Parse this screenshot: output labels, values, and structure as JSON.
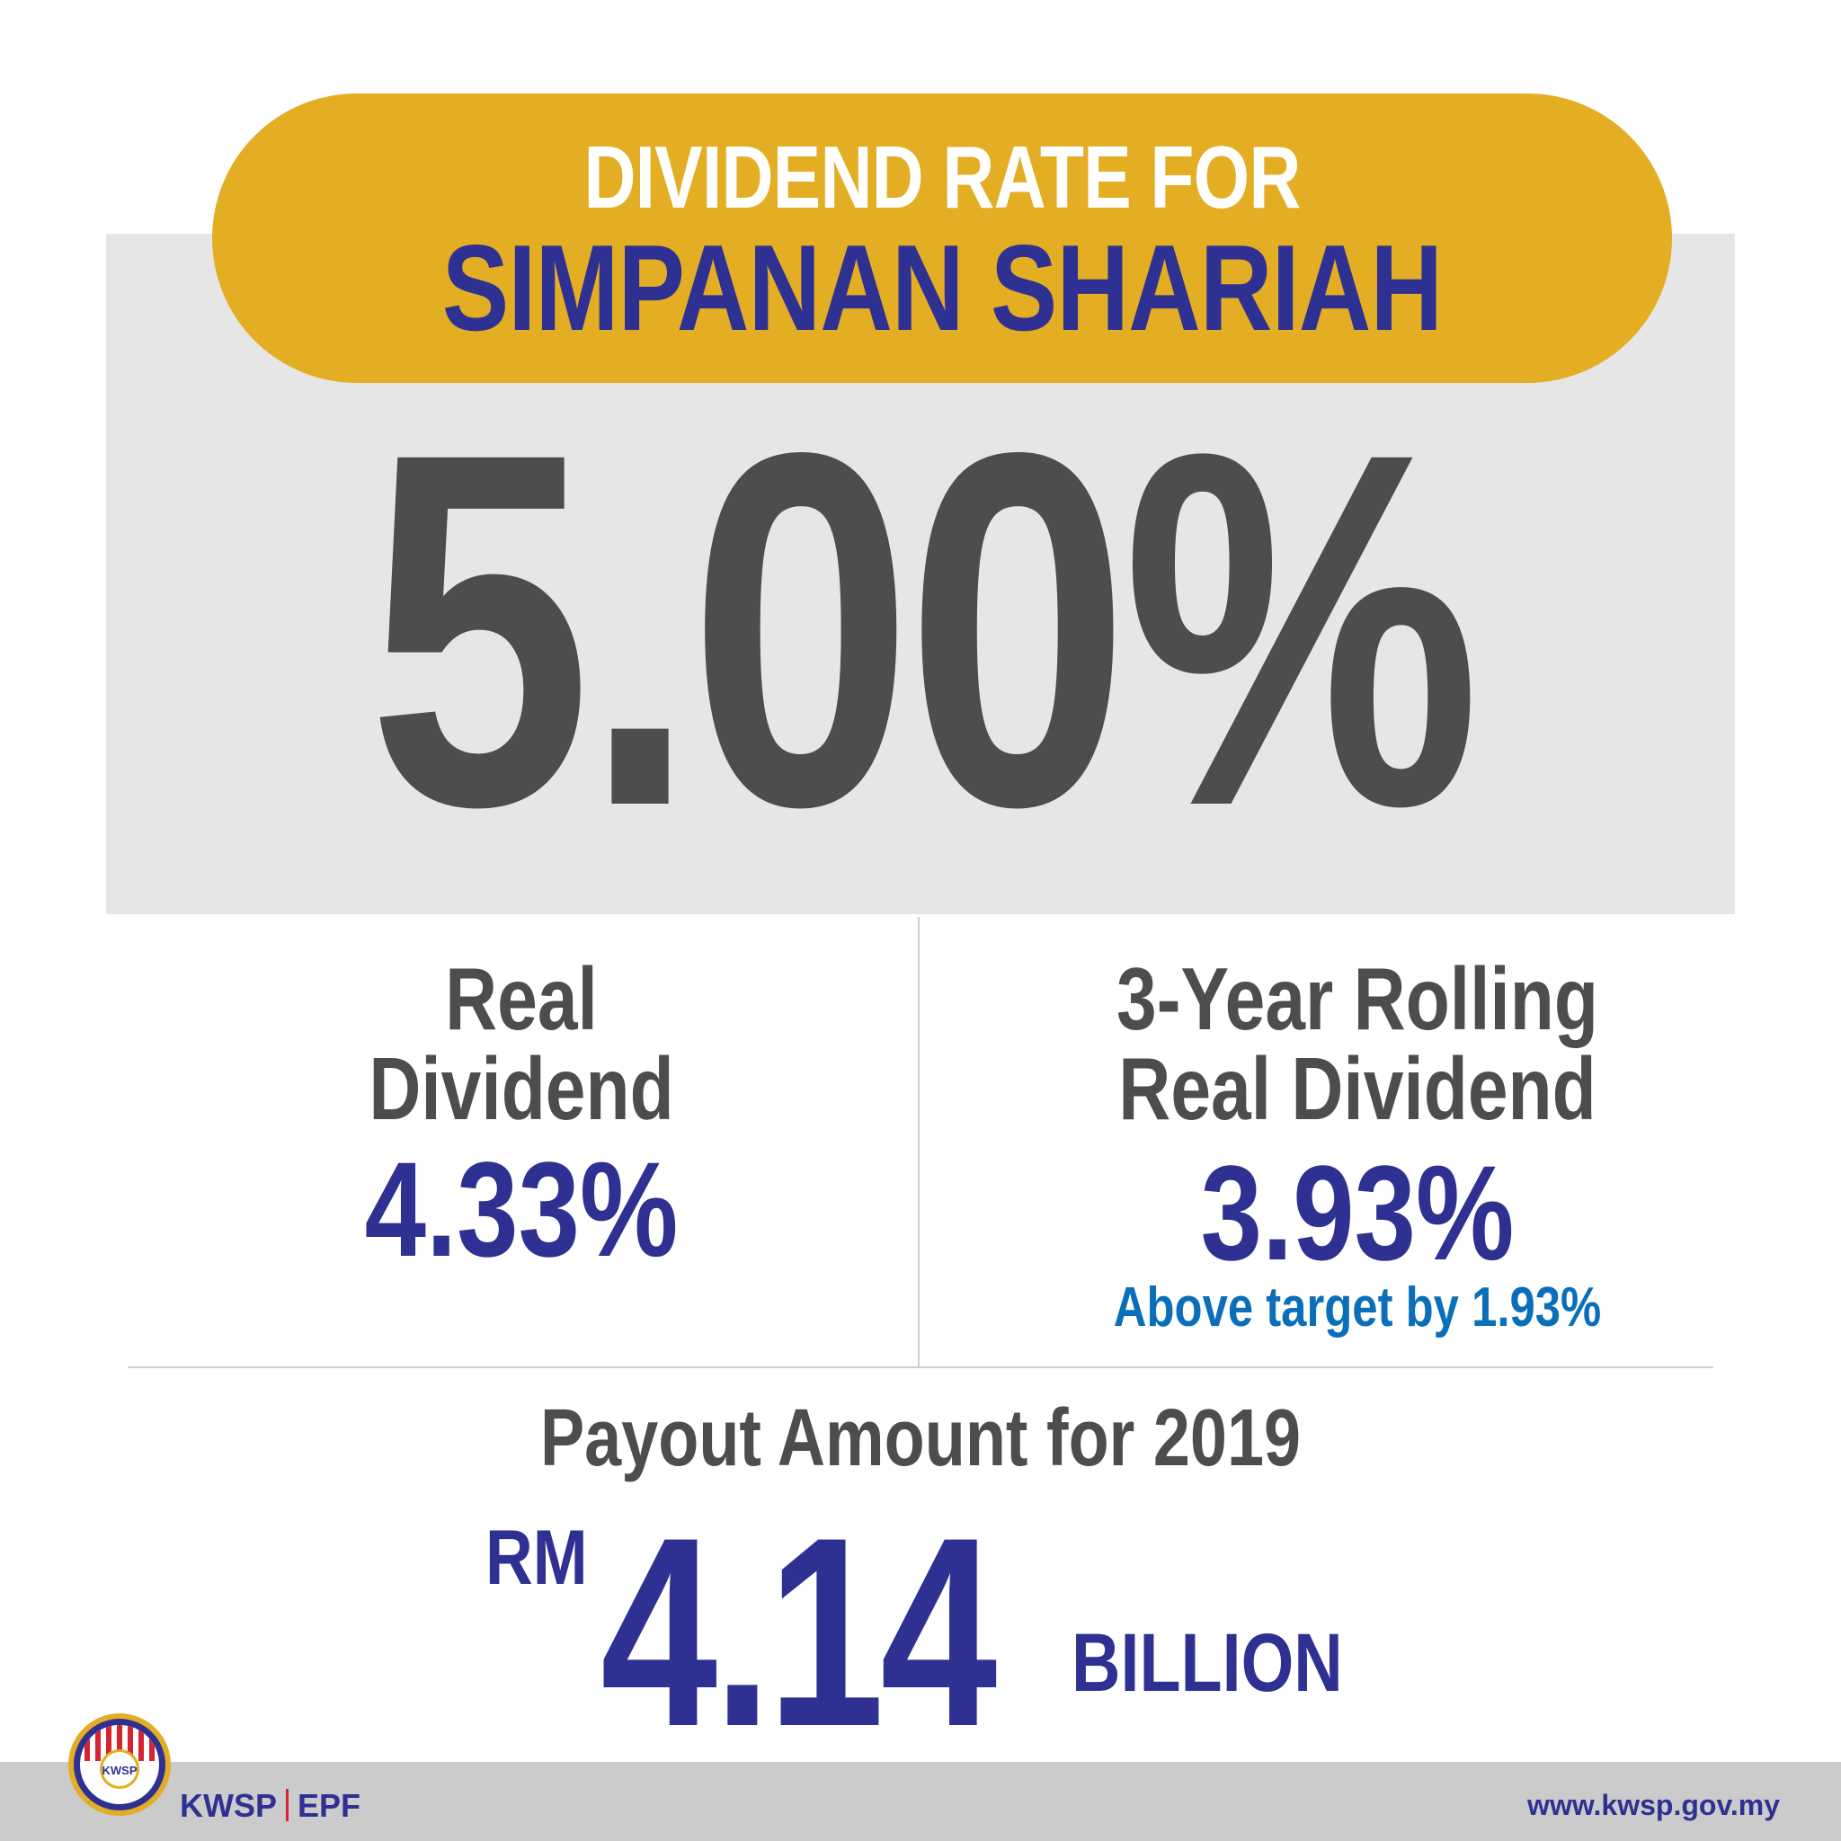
{
  "header": {
    "line1": "DIVIDEND RATE FOR",
    "line2": "SIMPANAN SHARIAH"
  },
  "main_rate": "5.00%",
  "real_dividend": {
    "label_line1": "Real",
    "label_line2": "Dividend",
    "value": "4.33%"
  },
  "rolling_dividend": {
    "label_line1": "3-Year Rolling",
    "label_line2": "Real Dividend",
    "value": "3.93%",
    "note": "Above target by 1.93%"
  },
  "payout": {
    "label": "Payout Amount for 2019",
    "currency": "RM",
    "amount": "4.14",
    "unit": "BILLION"
  },
  "footer": {
    "brand_left": "KWSP",
    "brand_right": "EPF",
    "website": "www.kwsp.gov.my",
    "logo_text": "KWSP"
  },
  "colors": {
    "accent_gold": "#e3ad24",
    "navy": "#2e3192",
    "dark_grey": "#4d4d4d",
    "light_blue": "#0a6fb8",
    "panel_grey": "#e6e6e6",
    "logo_red": "#d7232f"
  }
}
